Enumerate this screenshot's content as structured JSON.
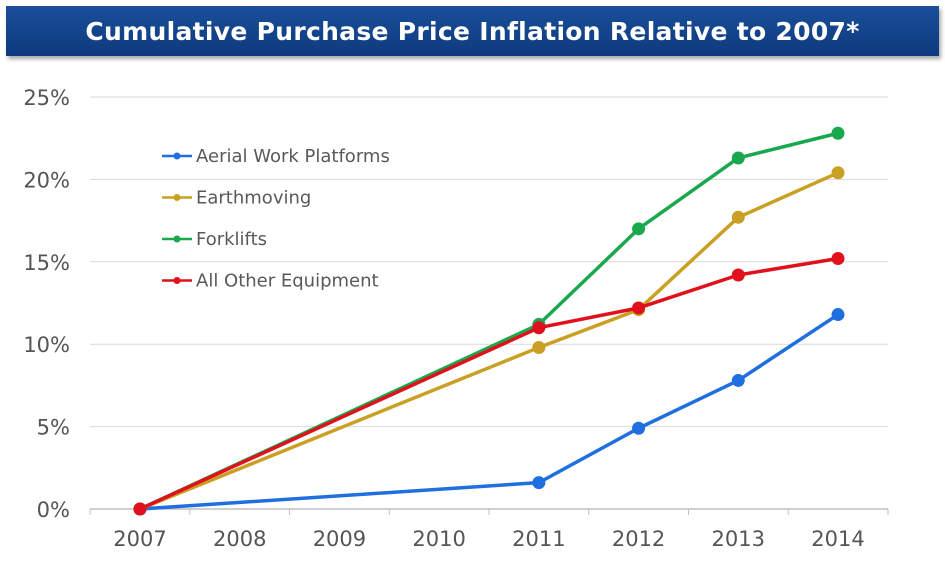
{
  "title": "Cumulative Purchase Price Inflation Relative to 2007*",
  "chart_data": {
    "type": "line",
    "title": "Cumulative Purchase Price Inflation Relative to 2007*",
    "xlabel": "",
    "ylabel": "",
    "categories": [
      "2007",
      "2008",
      "2009",
      "2010",
      "2011",
      "2012",
      "2013",
      "2014"
    ],
    "y_ticks": [
      "0%",
      "5%",
      "10%",
      "15%",
      "20%",
      "25%"
    ],
    "ylim": [
      0,
      25
    ],
    "grid": true,
    "legend_position": "top-left",
    "series": [
      {
        "name": "Aerial Work Platforms",
        "color": "#1f6fe0",
        "points": [
          {
            "x": "2007",
            "y": 0
          },
          {
            "x": "2011",
            "y": 1.6
          },
          {
            "x": "2012",
            "y": 4.9
          },
          {
            "x": "2013",
            "y": 7.8
          },
          {
            "x": "2014",
            "y": 11.8
          }
        ]
      },
      {
        "name": "Earthmoving",
        "color": "#c9a023",
        "points": [
          {
            "x": "2007",
            "y": 0
          },
          {
            "x": "2011",
            "y": 9.8
          },
          {
            "x": "2012",
            "y": 12.1
          },
          {
            "x": "2013",
            "y": 17.7
          },
          {
            "x": "2014",
            "y": 20.4
          }
        ]
      },
      {
        "name": "Forklifts",
        "color": "#1aa84e",
        "points": [
          {
            "x": "2007",
            "y": 0
          },
          {
            "x": "2011",
            "y": 11.2
          },
          {
            "x": "2012",
            "y": 17.0
          },
          {
            "x": "2013",
            "y": 21.3
          },
          {
            "x": "2014",
            "y": 22.8
          }
        ]
      },
      {
        "name": "All Other Equipment",
        "color": "#e0111c",
        "points": [
          {
            "x": "2007",
            "y": 0
          },
          {
            "x": "2011",
            "y": 11.0
          },
          {
            "x": "2012",
            "y": 12.2
          },
          {
            "x": "2013",
            "y": 14.2
          },
          {
            "x": "2014",
            "y": 15.2
          }
        ]
      }
    ]
  }
}
